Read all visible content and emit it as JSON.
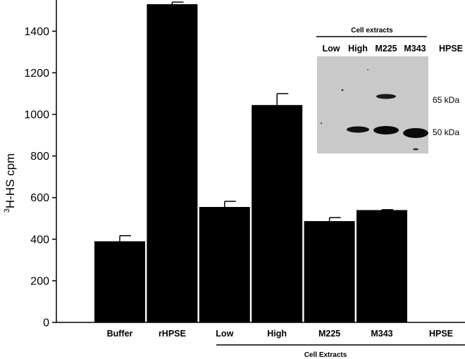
{
  "chart_data": {
    "type": "bar",
    "ylabel_sup": "3",
    "ylabel_main": "H-HS cpm",
    "ylim": [
      0,
      1550
    ],
    "yticks": [
      0,
      200,
      400,
      600,
      800,
      1000,
      1200,
      1400
    ],
    "categories": [
      "Buffer",
      "rHPSE",
      "Low",
      "High",
      "M225",
      "M343"
    ],
    "values": [
      390,
      1530,
      555,
      1045,
      487,
      540
    ],
    "errors": [
      27,
      10,
      27,
      55,
      17,
      2
    ],
    "bar_color": "#000000",
    "trailing_label": "HPSE",
    "group": {
      "label": "Cell Extracts",
      "from_category": 2,
      "to_category": 5
    },
    "inset": {
      "title": "Cell extracts",
      "lanes": [
        "Low",
        "High",
        "M225",
        "M343"
      ],
      "lane_trailing_label": "HPSE",
      "markers": [
        "65 kDa",
        "50 kDa"
      ],
      "background": "#c9c9c9"
    }
  }
}
